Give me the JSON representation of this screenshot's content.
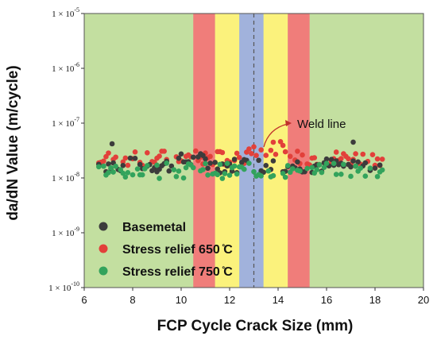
{
  "chart_data": {
    "type": "scatter",
    "xlabel": "FCP Cycle Crack Size (mm)",
    "ylabel": "da/dN Value (m/cycle)",
    "xlim": [
      6,
      20
    ],
    "ylim": [
      1e-10,
      1e-05
    ],
    "yscale": "log",
    "x_ticks": [
      "6",
      "8",
      "10",
      "12",
      "14",
      "16",
      "18",
      "20"
    ],
    "y_ticks": [
      {
        "base": "1 × 10",
        "exp": "-5"
      },
      {
        "base": "1 × 10",
        "exp": "-6"
      },
      {
        "base": "1 × 10",
        "exp": "-7"
      },
      {
        "base": "1 × 10",
        "exp": "-8"
      },
      {
        "base": "1 × 10",
        "exp": "-9"
      },
      {
        "base": "1 × 10",
        "exp": "-10"
      }
    ],
    "background_color": "#c3dfa0",
    "zones": [
      {
        "x0": 10.5,
        "x1": 11.4,
        "color": "#f07d7a"
      },
      {
        "x0": 11.4,
        "x1": 12.4,
        "color": "#fbf27c"
      },
      {
        "x0": 12.4,
        "x1": 13.4,
        "color": "#a1b2dc"
      },
      {
        "x0": 13.4,
        "x1": 14.4,
        "color": "#fbf27c"
      },
      {
        "x0": 14.4,
        "x1": 15.3,
        "color": "#f07d7a"
      }
    ],
    "weld_line_x": 13.0,
    "annotation": "Weld line",
    "legend_position": "bottom-left",
    "series": [
      {
        "name": "Basemetal",
        "color": "#3c3c3c",
        "points": []
      },
      {
        "name": "Stress relief 650 ̊C",
        "color": "#e2403a",
        "points": []
      },
      {
        "name": "Stress relief 750 ̊C",
        "color": "#33a35c",
        "points": []
      }
    ]
  }
}
